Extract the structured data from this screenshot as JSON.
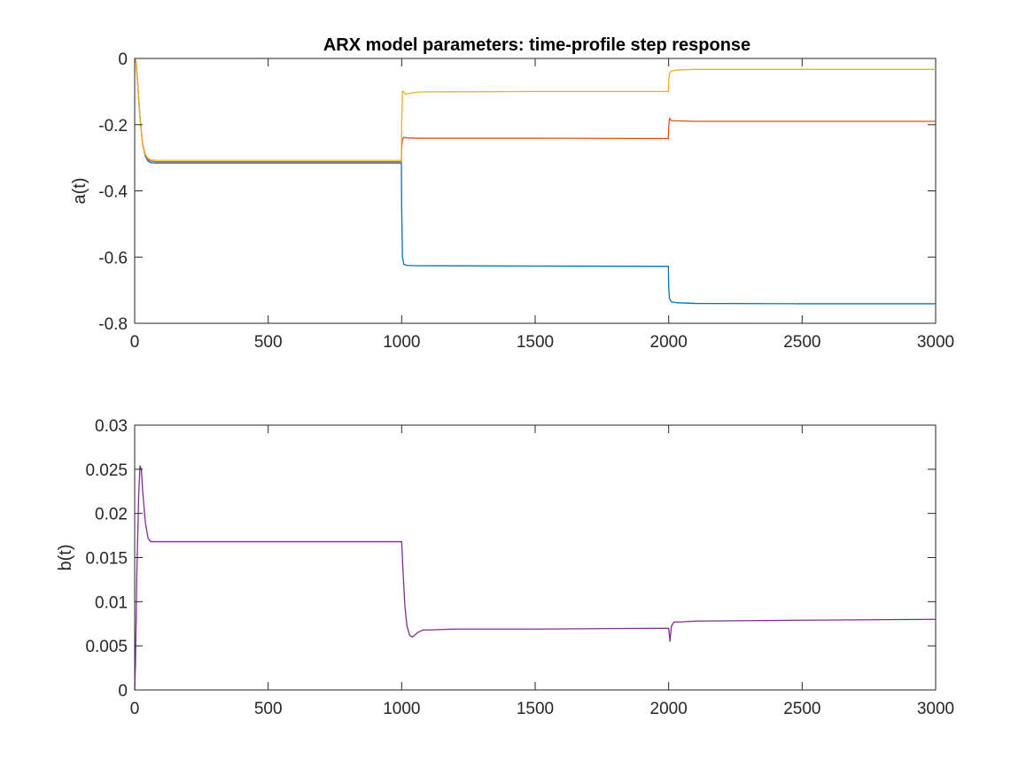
{
  "chart_data": [
    {
      "type": "line",
      "title": "ARX model parameters: time-profile step response",
      "xlabel": "",
      "ylabel": "a(t)",
      "xlim": [
        0,
        3000
      ],
      "ylim": [
        -0.8,
        0
      ],
      "xticks": [
        0,
        500,
        1000,
        1500,
        2000,
        2500,
        3000
      ],
      "yticks": [
        0,
        -0.2,
        -0.4,
        -0.6,
        -0.8
      ],
      "xtick_labels": [
        "0",
        "500",
        "1000",
        "1500",
        "2000",
        "2500",
        "3000"
      ],
      "ytick_labels": [
        "0",
        "-0.2",
        "-0.4",
        "-0.6",
        "-0.8"
      ],
      "grid": false,
      "series": [
        {
          "color": "#0072BD",
          "x": [
            0,
            5,
            10,
            20,
            30,
            40,
            50,
            60,
            80,
            100,
            200,
            500,
            999,
            1000,
            1003,
            1008,
            1020,
            1050,
            1500,
            1999,
            2000,
            2003,
            2010,
            2030,
            2100,
            2500,
            3000
          ],
          "y": [
            0,
            -0.01,
            -0.06,
            -0.18,
            -0.26,
            -0.295,
            -0.31,
            -0.315,
            -0.316,
            -0.316,
            -0.316,
            -0.316,
            -0.316,
            -0.45,
            -0.6,
            -0.622,
            -0.625,
            -0.626,
            -0.627,
            -0.628,
            -0.69,
            -0.725,
            -0.735,
            -0.738,
            -0.74,
            -0.741,
            -0.741
          ]
        },
        {
          "color": "#D95319",
          "x": [
            0,
            5,
            10,
            20,
            30,
            40,
            50,
            60,
            80,
            100,
            200,
            500,
            999,
            1000,
            1003,
            1008,
            1020,
            1050,
            1500,
            1999,
            2000,
            2003,
            2010,
            2100,
            2500,
            3000
          ],
          "y": [
            0,
            -0.01,
            -0.06,
            -0.18,
            -0.26,
            -0.29,
            -0.305,
            -0.31,
            -0.312,
            -0.312,
            -0.312,
            -0.312,
            -0.312,
            -0.27,
            -0.245,
            -0.238,
            -0.24,
            -0.241,
            -0.241,
            -0.242,
            -0.21,
            -0.18,
            -0.188,
            -0.19,
            -0.19,
            -0.19
          ]
        },
        {
          "color": "#EDB120",
          "x": [
            0,
            5,
            10,
            20,
            30,
            40,
            50,
            60,
            80,
            100,
            200,
            500,
            999,
            1000,
            1003,
            1008,
            1015,
            1025,
            1040,
            1060,
            1100,
            1500,
            1999,
            2000,
            2003,
            2010,
            2030,
            2060,
            2100,
            2500,
            3000
          ],
          "y": [
            0,
            -0.01,
            -0.06,
            -0.18,
            -0.26,
            -0.29,
            -0.302,
            -0.306,
            -0.308,
            -0.308,
            -0.308,
            -0.308,
            -0.308,
            -0.2,
            -0.098,
            -0.102,
            -0.108,
            -0.106,
            -0.104,
            -0.102,
            -0.101,
            -0.1,
            -0.1,
            -0.07,
            -0.045,
            -0.038,
            -0.035,
            -0.034,
            -0.033,
            -0.033,
            -0.033
          ]
        }
      ]
    },
    {
      "type": "line",
      "title": "",
      "xlabel": "",
      "ylabel": "b(t)",
      "xlim": [
        0,
        3000
      ],
      "ylim": [
        0,
        0.03
      ],
      "xticks": [
        0,
        500,
        1000,
        1500,
        2000,
        2500,
        3000
      ],
      "yticks": [
        0,
        0.005,
        0.01,
        0.015,
        0.02,
        0.025,
        0.03
      ],
      "xtick_labels": [
        "0",
        "500",
        "1000",
        "1500",
        "2000",
        "2500",
        "3000"
      ],
      "ytick_labels": [
        "0",
        "0.005",
        "0.01",
        "0.015",
        "0.02",
        "0.025",
        "0.03"
      ],
      "grid": false,
      "series": [
        {
          "color": "#7E2F8E",
          "x": [
            0,
            3,
            8,
            15,
            20,
            25,
            30,
            40,
            50,
            60,
            80,
            100,
            200,
            500,
            999,
            1000,
            1005,
            1012,
            1020,
            1030,
            1040,
            1060,
            1080,
            1100,
            1200,
            1500,
            1999,
            2000,
            2005,
            2010,
            2020,
            2040,
            2100,
            2500,
            3000
          ],
          "y": [
            0,
            0.003,
            0.013,
            0.022,
            0.0254,
            0.025,
            0.0225,
            0.019,
            0.0172,
            0.0168,
            0.0168,
            0.0168,
            0.0168,
            0.0168,
            0.0168,
            0.0168,
            0.0135,
            0.0095,
            0.0072,
            0.0062,
            0.006,
            0.0065,
            0.0068,
            0.0068,
            0.0069,
            0.0069,
            0.007,
            0.007,
            0.0055,
            0.0072,
            0.0077,
            0.0077,
            0.0078,
            0.0079,
            0.008
          ]
        }
      ]
    }
  ]
}
